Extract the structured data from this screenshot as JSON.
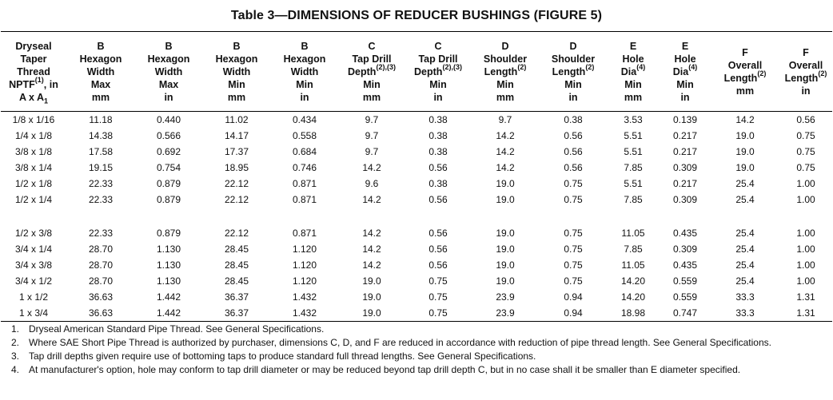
{
  "title": "Table 3—DIMENSIONS OF REDUCER BUSHINGS (FIGURE 5)",
  "headers": [
    {
      "lines": [
        "Dryseal",
        "Taper",
        "Thread",
        "NPTF",
        ", in",
        "A x A"
      ],
      "supText": "(1)",
      "subText": "1"
    },
    {
      "lines": [
        "B",
        "Hexagon",
        "Width",
        "Max",
        "mm"
      ]
    },
    {
      "lines": [
        "B",
        "Hexagon",
        "Width",
        "Max",
        "in"
      ]
    },
    {
      "lines": [
        "B",
        "Hexagon",
        "Width",
        "Min",
        "mm"
      ]
    },
    {
      "lines": [
        "B",
        "Hexagon",
        "Width",
        "Min",
        "in"
      ]
    },
    {
      "lines": [
        "C",
        "Tap Drill",
        "Depth",
        "Min",
        "mm"
      ],
      "supText": "(2),(3)"
    },
    {
      "lines": [
        "C",
        "Tap Drill",
        "Depth",
        "Min",
        "in"
      ],
      "supText": "(2),(3)"
    },
    {
      "lines": [
        "D",
        "Shoulder",
        "Length",
        "Min",
        "mm"
      ],
      "supText": "(2)"
    },
    {
      "lines": [
        "D",
        "Shoulder",
        "Length",
        "Min",
        "in"
      ],
      "supText": "(2)"
    },
    {
      "lines": [
        "E",
        "Hole",
        "Dia",
        "Min",
        "mm"
      ],
      "supText": "(4)"
    },
    {
      "lines": [
        "E",
        "Hole",
        "Dia",
        "Min",
        "in"
      ],
      "supText": "(4)"
    },
    {
      "lines": [
        "F",
        "Overall",
        "Length",
        "mm"
      ],
      "supText": "(2)"
    },
    {
      "lines": [
        "F",
        "Overall",
        "Length",
        "in"
      ],
      "supText": "(2)"
    }
  ],
  "rows": [
    [
      "1/8 x 1/16",
      "11.18",
      "0.440",
      "11.02",
      "0.434",
      "9.7",
      "0.38",
      "9.7",
      "0.38",
      "3.53",
      "0.139",
      "14.2",
      "0.56"
    ],
    [
      "1/4 x 1/8",
      "14.38",
      "0.566",
      "14.17",
      "0.558",
      "9.7",
      "0.38",
      "14.2",
      "0.56",
      "5.51",
      "0.217",
      "19.0",
      "0.75"
    ],
    [
      "3/8 x 1/8",
      "17.58",
      "0.692",
      "17.37",
      "0.684",
      "9.7",
      "0.38",
      "14.2",
      "0.56",
      "5.51",
      "0.217",
      "19.0",
      "0.75"
    ],
    [
      "3/8 x 1/4",
      "19.15",
      "0.754",
      "18.95",
      "0.746",
      "14.2",
      "0.56",
      "14.2",
      "0.56",
      "7.85",
      "0.309",
      "19.0",
      "0.75"
    ],
    [
      "1/2 x 1/8",
      "22.33",
      "0.879",
      "22.12",
      "0.871",
      "9.6",
      "0.38",
      "19.0",
      "0.75",
      "5.51",
      "0.217",
      "25.4",
      "1.00"
    ],
    [
      "1/2 x 1/4",
      "22.33",
      "0.879",
      "22.12",
      "0.871",
      "14.2",
      "0.56",
      "19.0",
      "0.75",
      "7.85",
      "0.309",
      "25.4",
      "1.00"
    ],
    [
      "1/2 x 3/8",
      "22.33",
      "0.879",
      "22.12",
      "0.871",
      "14.2",
      "0.56",
      "19.0",
      "0.75",
      "11.05",
      "0.435",
      "25.4",
      "1.00"
    ],
    [
      "3/4 x 1/4",
      "28.70",
      "1.130",
      "28.45",
      "1.120",
      "14.2",
      "0.56",
      "19.0",
      "0.75",
      "7.85",
      "0.309",
      "25.4",
      "1.00"
    ],
    [
      "3/4 x 3/8",
      "28.70",
      "1.130",
      "28.45",
      "1.120",
      "14.2",
      "0.56",
      "19.0",
      "0.75",
      "11.05",
      "0.435",
      "25.4",
      "1.00"
    ],
    [
      "3/4 x 1/2",
      "28.70",
      "1.130",
      "28.45",
      "1.120",
      "19.0",
      "0.75",
      "19.0",
      "0.75",
      "14.20",
      "0.559",
      "25.4",
      "1.00"
    ],
    [
      "1 x 1/2",
      "36.63",
      "1.442",
      "36.37",
      "1.432",
      "19.0",
      "0.75",
      "23.9",
      "0.94",
      "14.20",
      "0.559",
      "33.3",
      "1.31"
    ],
    [
      "1 x 3/4",
      "36.63",
      "1.442",
      "36.37",
      "1.432",
      "19.0",
      "0.75",
      "23.9",
      "0.94",
      "18.98",
      "0.747",
      "33.3",
      "1.31"
    ]
  ],
  "notes": [
    {
      "num": "1.",
      "text": "Dryseal American Standard Pipe Thread.  See General Specifications."
    },
    {
      "num": "2.",
      "text": "Where SAE Short Pipe Thread is authorized by purchaser, dimensions C, D, and F are reduced in accordance with reduction of pipe thread length.  See General Specifications."
    },
    {
      "num": "3.",
      "text": "Tap drill depths given require use of bottoming taps to produce standard full thread lengths.  See General Specifications."
    },
    {
      "num": "4.",
      "text": "At manufacturer's option, hole may conform to tap drill diameter or may be reduced beyond tap drill depth C, but in no case shall it be smaller than E diameter specified."
    }
  ]
}
